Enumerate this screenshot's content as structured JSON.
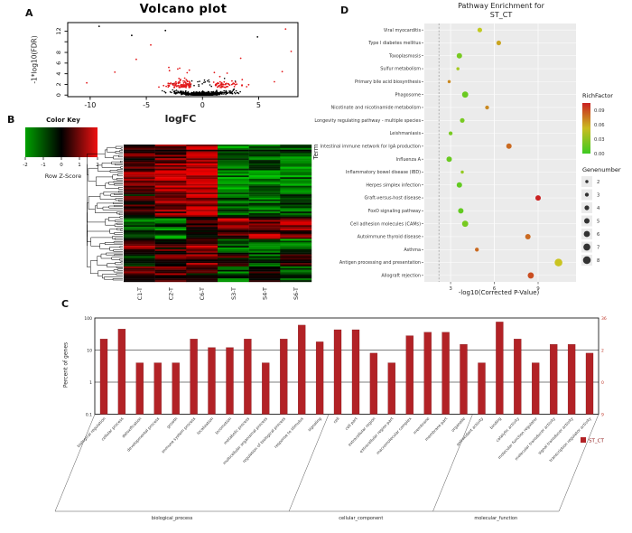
{
  "panels": {
    "a": "A",
    "b": "B",
    "c": "C",
    "d": "D"
  },
  "chart_data": [
    {
      "id": "volcano",
      "type": "scatter",
      "title": "Volcano plot",
      "xlabel": "logFC",
      "ylabel": "-1*log10(FDR)",
      "xticks": [
        -10,
        -5,
        0,
        5
      ],
      "yticks_marks": [
        0,
        2,
        4,
        6,
        8,
        10,
        12
      ],
      "ytick_labels": [
        "0",
        "2",
        "4",
        "6",
        "8",
        "12"
      ],
      "ytick_label_values": [
        0,
        2,
        4,
        6,
        8,
        12
      ],
      "xlim": [
        -12,
        8.5
      ],
      "ylim": [
        -0.3,
        13.6
      ],
      "point_colors": {
        "nonsig": "#000000",
        "sig": "#e31a1c"
      },
      "generated_counts": {
        "nonsig": 950,
        "sig": 170
      },
      "outliers": [
        {
          "x": -9.2,
          "y": 12.9,
          "c": "nonsig"
        },
        {
          "x": 7.4,
          "y": 12.4,
          "c": "sig"
        },
        {
          "x": -6.3,
          "y": 11.2,
          "c": "nonsig"
        },
        {
          "x": -3.3,
          "y": 12.1,
          "c": "nonsig"
        },
        {
          "x": 4.9,
          "y": 10.9,
          "c": "nonsig"
        },
        {
          "x": -4.6,
          "y": 9.4,
          "c": "sig"
        },
        {
          "x": 7.9,
          "y": 8.2,
          "c": "sig"
        },
        {
          "x": -5.9,
          "y": 6.7,
          "c": "sig"
        },
        {
          "x": 3.4,
          "y": 6.9,
          "c": "sig"
        },
        {
          "x": -7.8,
          "y": 4.3,
          "c": "sig"
        },
        {
          "x": 7.1,
          "y": 4.4,
          "c": "sig"
        },
        {
          "x": 6.4,
          "y": 2.5,
          "c": "sig"
        },
        {
          "x": -10.3,
          "y": 2.3,
          "c": "sig"
        },
        {
          "x": -3.0,
          "y": 5.2,
          "c": "sig"
        },
        {
          "x": 2.2,
          "y": 4.1,
          "c": "sig"
        }
      ]
    },
    {
      "id": "heatmap",
      "type": "heatmap",
      "color_key": {
        "title": "Color Key",
        "axis_label": "Row Z-Score",
        "ticks": [
          "-2",
          "-1",
          "0",
          "1",
          "2"
        ]
      },
      "columns": [
        "C1-T",
        "C2-T",
        "C6-T",
        "S3-T",
        "S4-T",
        "S6-T"
      ],
      "n_rows": 80,
      "palette": {
        "low": "#00a000",
        "mid": "#000000",
        "high": "#ee1111"
      },
      "blocks": [
        {
          "from": 0.0,
          "to": 0.18,
          "c": [
            0.6,
            1.0,
            1.6
          ],
          "s": [
            -1.2,
            -1.0,
            -1.1
          ]
        },
        {
          "from": 0.18,
          "to": 0.34,
          "c": [
            1.2,
            1.5,
            1.8
          ],
          "s": [
            -1.3,
            -1.2,
            -1.2
          ]
        },
        {
          "from": 0.34,
          "to": 0.52,
          "c": [
            0.3,
            1.0,
            1.4
          ],
          "s": [
            -1.0,
            -1.1,
            -0.9
          ]
        },
        {
          "from": 0.52,
          "to": 0.6,
          "c": [
            -1.0,
            -0.8,
            0.2
          ],
          "s": [
            1.2,
            1.0,
            1.4
          ]
        },
        {
          "from": 0.6,
          "to": 0.68,
          "c": [
            -0.9,
            -1.0,
            -0.6
          ],
          "s": [
            0.6,
            1.3,
            0.9
          ]
        },
        {
          "from": 0.68,
          "to": 0.8,
          "c": [
            0.9,
            0.4,
            1.2
          ],
          "s": [
            -1.0,
            -0.7,
            -1.1
          ]
        },
        {
          "from": 0.8,
          "to": 0.88,
          "c": [
            -0.6,
            0.8,
            1.0
          ],
          "s": [
            0.4,
            -0.9,
            0.5
          ]
        },
        {
          "from": 0.88,
          "to": 1.0,
          "c": [
            0.5,
            0.9,
            0.3
          ],
          "s": [
            -0.8,
            0.7,
            -0.6
          ]
        }
      ]
    },
    {
      "id": "go_bars",
      "type": "bar",
      "ylabel": "Percent of genes",
      "left_ticks": [
        "100",
        "10",
        "1",
        "0.1"
      ],
      "left_tick_values": [
        100,
        10,
        1,
        0.1
      ],
      "right_ticks": [
        "36",
        "2",
        "0",
        "9"
      ],
      "bar_color": "#b22226",
      "legend_label": "ST_CT",
      "groups": [
        {
          "name": "biological_process",
          "items": [
            {
              "label": "biological regulation",
              "value": 22
            },
            {
              "label": "cellular process",
              "value": 45
            },
            {
              "label": "detoxification",
              "value": 4
            },
            {
              "label": "developmental process",
              "value": 4
            },
            {
              "label": "growth",
              "value": 4
            },
            {
              "label": "immune system process",
              "value": 22
            },
            {
              "label": "localization",
              "value": 12
            },
            {
              "label": "locomotion",
              "value": 12
            },
            {
              "label": "metabolic process",
              "value": 22
            },
            {
              "label": "multicellular organismal process",
              "value": 4
            },
            {
              "label": "regulation of biological process",
              "value": 22
            },
            {
              "label": "response to stimulus",
              "value": 60
            },
            {
              "label": "signaling",
              "value": 18
            }
          ]
        },
        {
          "name": "cellular_component",
          "items": [
            {
              "label": "cell",
              "value": 43
            },
            {
              "label": "cell part",
              "value": 43
            },
            {
              "label": "extracellular region",
              "value": 8
            },
            {
              "label": "extracellular region part",
              "value": 4
            },
            {
              "label": "macromolecular complex",
              "value": 28
            },
            {
              "label": "membrane",
              "value": 36
            },
            {
              "label": "membrane part",
              "value": 36
            },
            {
              "label": "organelle",
              "value": 15
            }
          ]
        },
        {
          "name": "molecular_function",
          "items": [
            {
              "label": "antioxidant activity",
              "value": 4
            },
            {
              "label": "binding",
              "value": 75
            },
            {
              "label": "catalytic activity",
              "value": 22
            },
            {
              "label": "molecular function regulator",
              "value": 4
            },
            {
              "label": "molecular transducer activity",
              "value": 15
            },
            {
              "label": "signal transducer activity",
              "value": 15
            },
            {
              "label": "transcription regulator activity",
              "value": 8
            }
          ]
        }
      ]
    },
    {
      "id": "pathway_dotplot",
      "type": "scatter",
      "title_line1": "Pathway Enrichment for",
      "title_line2": "ST_CT",
      "xlabel": "-log10(Corrected P-Value)",
      "ylabel": "Term",
      "xticks": [
        3,
        6,
        9
      ],
      "xlim": [
        1.2,
        11.6
      ],
      "vline": 2.2,
      "terms": [
        {
          "label": "Viral myocarditis",
          "x": 5.0,
          "genenumber": 4,
          "richfactor": 0.045
        },
        {
          "label": "Type I diabetes mellitus",
          "x": 6.3,
          "genenumber": 4,
          "richfactor": 0.06
        },
        {
          "label": "Toxoplasmosis",
          "x": 3.6,
          "genenumber": 5,
          "richfactor": 0.02
        },
        {
          "label": "Sulfur metabolism",
          "x": 3.5,
          "genenumber": 2,
          "richfactor": 0.035
        },
        {
          "label": "Primary bile acid biosynthesis",
          "x": 2.9,
          "genenumber": 2,
          "richfactor": 0.07
        },
        {
          "label": "Phagosome",
          "x": 4.0,
          "genenumber": 6,
          "richfactor": 0.015
        },
        {
          "label": "Nicotinate and nicotinamide metabolism",
          "x": 5.5,
          "genenumber": 3,
          "richfactor": 0.07
        },
        {
          "label": "Longevity regulating pathway - multiple species",
          "x": 3.8,
          "genenumber": 4,
          "richfactor": 0.02
        },
        {
          "label": "Leishmaniasis",
          "x": 3.0,
          "genenumber": 3,
          "richfactor": 0.02
        },
        {
          "label": "Intestinal immune network for IgA production",
          "x": 7.0,
          "genenumber": 5,
          "richfactor": 0.08
        },
        {
          "label": "Influenza A",
          "x": 2.9,
          "genenumber": 5,
          "richfactor": 0.015
        },
        {
          "label": "Inflammatory bowel disease (IBD)",
          "x": 3.8,
          "genenumber": 2,
          "richfactor": 0.03
        },
        {
          "label": "Herpes simplex infection",
          "x": 3.6,
          "genenumber": 5,
          "richfactor": 0.012
        },
        {
          "label": "Graft-versus-host disease",
          "x": 9.0,
          "genenumber": 5,
          "richfactor": 0.105
        },
        {
          "label": "FoxO signaling pathway",
          "x": 3.7,
          "genenumber": 5,
          "richfactor": 0.012
        },
        {
          "label": "Cell adhesion molecules (CAMs)",
          "x": 4.0,
          "genenumber": 6,
          "richfactor": 0.02
        },
        {
          "label": "Autoimmune thyroid disease",
          "x": 8.3,
          "genenumber": 5,
          "richfactor": 0.08
        },
        {
          "label": "Asthma",
          "x": 4.8,
          "genenumber": 3,
          "richfactor": 0.08
        },
        {
          "label": "Antigen processing and presentation",
          "x": 10.4,
          "genenumber": 8,
          "richfactor": 0.05
        },
        {
          "label": "Allograft rejection",
          "x": 8.5,
          "genenumber": 6,
          "richfactor": 0.09
        }
      ],
      "legend_richfactor": {
        "title": "RichFactor",
        "tick_labels": [
          "0.09",
          "0.06",
          "0.03",
          "0.00"
        ],
        "tick_values": [
          0.09,
          0.06,
          0.03,
          0.0
        ],
        "max": 0.105
      },
      "legend_genenumber": {
        "title": "Genenumber",
        "sizes": [
          2,
          3,
          4,
          5,
          6,
          7,
          8
        ]
      }
    }
  ]
}
